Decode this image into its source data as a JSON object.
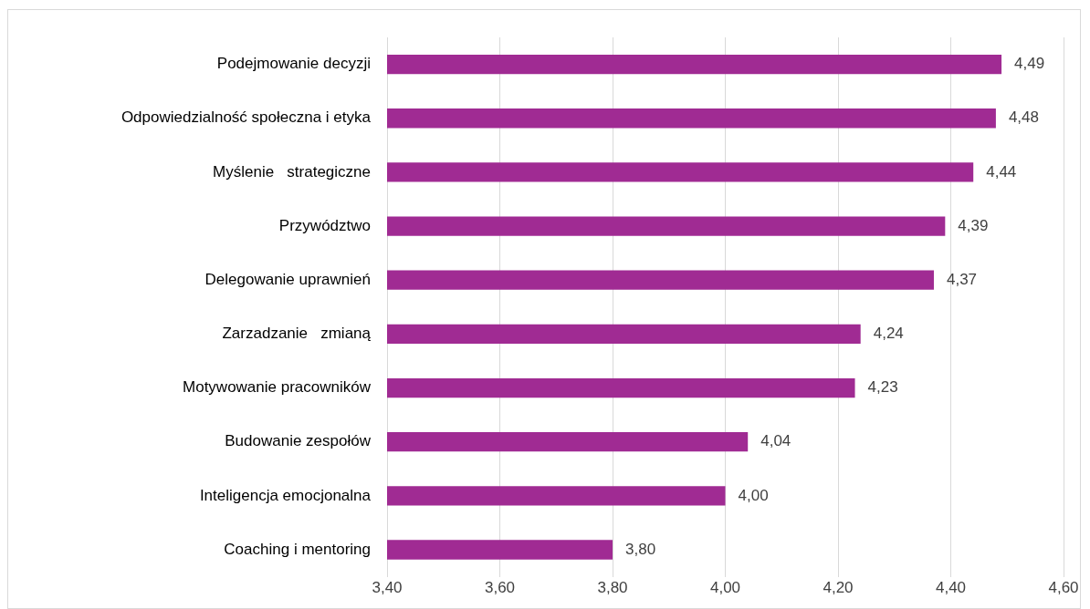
{
  "chart_data": {
    "type": "bar",
    "orientation": "horizontal",
    "categories": [
      "Podejmowanie decyzji",
      "Odpowiedzialność społeczna i etyka",
      "Myślenie   strategiczne",
      "Przywództwo",
      "Delegowanie uprawnień",
      "Zarzadzanie   zmianą",
      "Motywowanie pracowników",
      "Budowanie zespołów",
      "Inteligencja emocjonalna",
      "Coaching i mentoring"
    ],
    "values": [
      4.49,
      4.48,
      4.44,
      4.39,
      4.37,
      4.24,
      4.23,
      4.04,
      4.0,
      3.8
    ],
    "value_labels": [
      "4,49",
      "4,48",
      "4,44",
      "4,39",
      "4,37",
      "4,24",
      "4,23",
      "4,04",
      "4,00",
      "3,80"
    ],
    "color": "#a02b93",
    "xlim": [
      3.4,
      4.6
    ],
    "xticks": [
      {
        "value": 3.4,
        "label": "3,40"
      },
      {
        "value": 3.6,
        "label": "3,60"
      },
      {
        "value": 3.8,
        "label": "3,80"
      },
      {
        "value": 4.0,
        "label": "4,00"
      },
      {
        "value": 4.2,
        "label": "4,20"
      },
      {
        "value": 4.4,
        "label": "4,40"
      },
      {
        "value": 4.6,
        "label": "4,60"
      }
    ],
    "grid": "x",
    "legend": false
  }
}
